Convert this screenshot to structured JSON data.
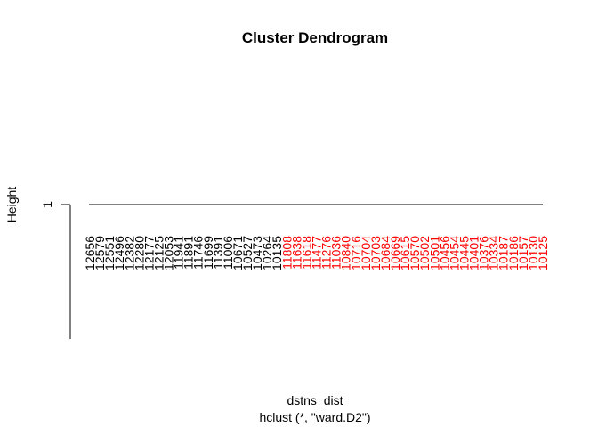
{
  "chart_data": {
    "type": "dendrogram",
    "title": "Cluster Dendrogram",
    "xlabel": "dstns_dist",
    "subtitle": "hclust (*, \"ward.D2\")",
    "ylabel": "Height",
    "yticks": [
      1
    ],
    "merge_height": 1,
    "leaves": [
      {
        "label": "12656",
        "cluster": 1
      },
      {
        "label": "12579",
        "cluster": 1
      },
      {
        "label": "12551",
        "cluster": 1
      },
      {
        "label": "12496",
        "cluster": 1
      },
      {
        "label": "12382",
        "cluster": 1
      },
      {
        "label": "12280",
        "cluster": 1
      },
      {
        "label": "12177",
        "cluster": 1
      },
      {
        "label": "12125",
        "cluster": 1
      },
      {
        "label": "12053",
        "cluster": 1
      },
      {
        "label": "11941",
        "cluster": 1
      },
      {
        "label": "11891",
        "cluster": 1
      },
      {
        "label": "11746",
        "cluster": 1
      },
      {
        "label": "11699",
        "cluster": 1
      },
      {
        "label": "11391",
        "cluster": 1
      },
      {
        "label": "11006",
        "cluster": 1
      },
      {
        "label": "10671",
        "cluster": 1
      },
      {
        "label": "10527",
        "cluster": 1
      },
      {
        "label": "10473",
        "cluster": 1
      },
      {
        "label": "10264",
        "cluster": 1
      },
      {
        "label": "10135",
        "cluster": 1
      },
      {
        "label": "11808",
        "cluster": 2
      },
      {
        "label": "11638",
        "cluster": 2
      },
      {
        "label": "11618",
        "cluster": 2
      },
      {
        "label": "11477",
        "cluster": 2
      },
      {
        "label": "11276",
        "cluster": 2
      },
      {
        "label": "11036",
        "cluster": 2
      },
      {
        "label": "10840",
        "cluster": 2
      },
      {
        "label": "10716",
        "cluster": 2
      },
      {
        "label": "10704",
        "cluster": 2
      },
      {
        "label": "10703",
        "cluster": 2
      },
      {
        "label": "10684",
        "cluster": 2
      },
      {
        "label": "10669",
        "cluster": 2
      },
      {
        "label": "10615",
        "cluster": 2
      },
      {
        "label": "10570",
        "cluster": 2
      },
      {
        "label": "10502",
        "cluster": 2
      },
      {
        "label": "10501",
        "cluster": 2
      },
      {
        "label": "10456",
        "cluster": 2
      },
      {
        "label": "10454",
        "cluster": 2
      },
      {
        "label": "10445",
        "cluster": 2
      },
      {
        "label": "10401",
        "cluster": 2
      },
      {
        "label": "10376",
        "cluster": 2
      },
      {
        "label": "10334",
        "cluster": 2
      },
      {
        "label": "10187",
        "cluster": 2
      },
      {
        "label": "10186",
        "cluster": 2
      },
      {
        "label": "10157",
        "cluster": 2
      },
      {
        "label": "10130",
        "cluster": 2
      },
      {
        "label": "10125",
        "cluster": 2
      }
    ],
    "colors": {
      "cluster_1": "#000000",
      "cluster_2": "#ff0000",
      "line": "#000000"
    }
  }
}
